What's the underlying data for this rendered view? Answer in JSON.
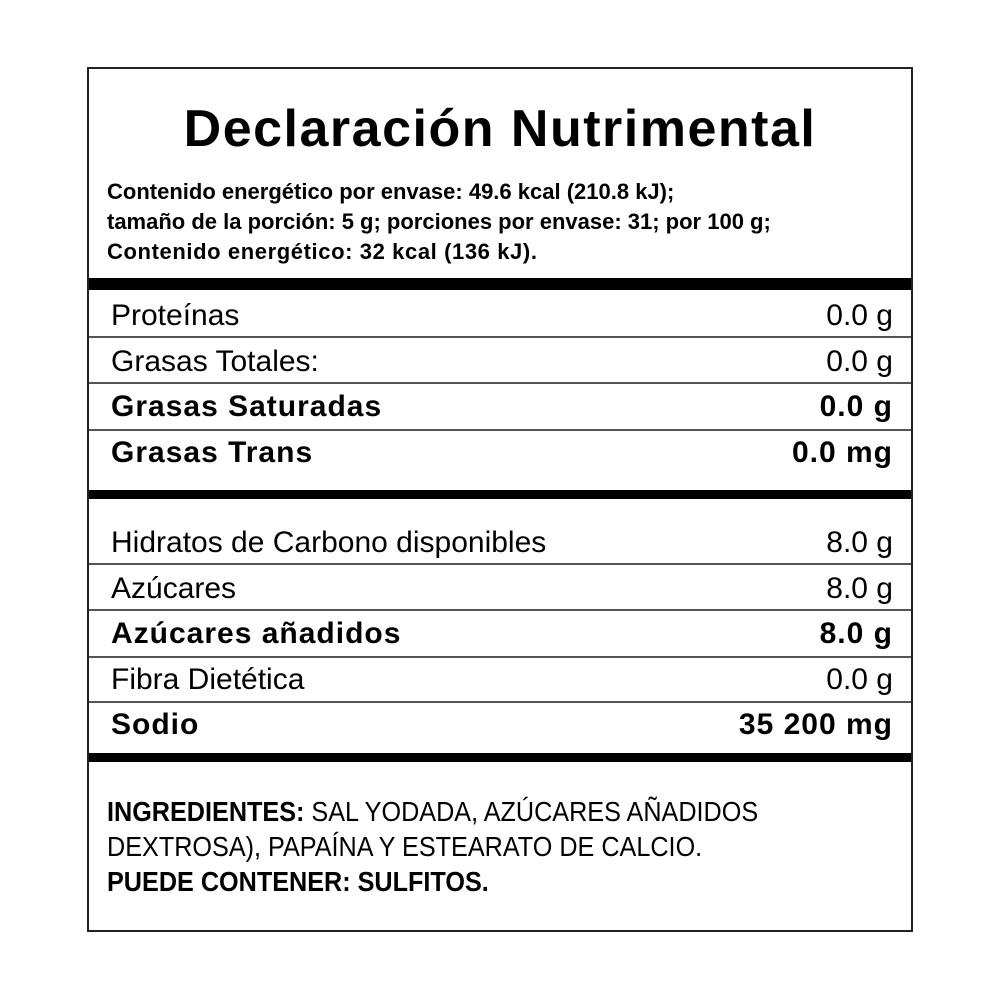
{
  "title": "Declaración Nutrimental",
  "energy_lines": [
    "Contenido energético por envase: 49.6 kcal (210.8 kJ);",
    "tamaño de la porción: 5 g; porciones por envase: 31; por 100 g;",
    "Contenido energético: 32 kcal (136 kJ)."
  ],
  "nutrients_group1": [
    {
      "name": "Proteínas",
      "value": "0.0 g",
      "bold": false
    },
    {
      "name": "Grasas Totales:",
      "value": "0.0 g",
      "bold": false
    },
    {
      "name": "Grasas Saturadas",
      "value": "0.0 g",
      "bold": true
    },
    {
      "name": "Grasas Trans",
      "value": "0.0 mg",
      "bold": true
    }
  ],
  "nutrients_group2": [
    {
      "name": "Hidratos de Carbono disponibles",
      "value": "8.0 g",
      "bold": false
    },
    {
      "name": "Azúcares",
      "value": "8.0 g",
      "bold": false
    },
    {
      "name": "Azúcares añadidos",
      "value": "8.0 g",
      "bold": true
    },
    {
      "name": "Fibra Dietética",
      "value": "0.0 g",
      "bold": false
    },
    {
      "name": "Sodio",
      "value": "35 200 mg",
      "bold": true
    }
  ],
  "ingredients": {
    "label": "INGREDIENTES:",
    "line1": " SAL YODADA, AZÚCARES AÑADIDOS",
    "line2": "DEXTROSA), PAPAÍNA Y ESTEARATO DE CALCIO.",
    "allergens": "PUEDE CONTENER: SULFITOS."
  }
}
